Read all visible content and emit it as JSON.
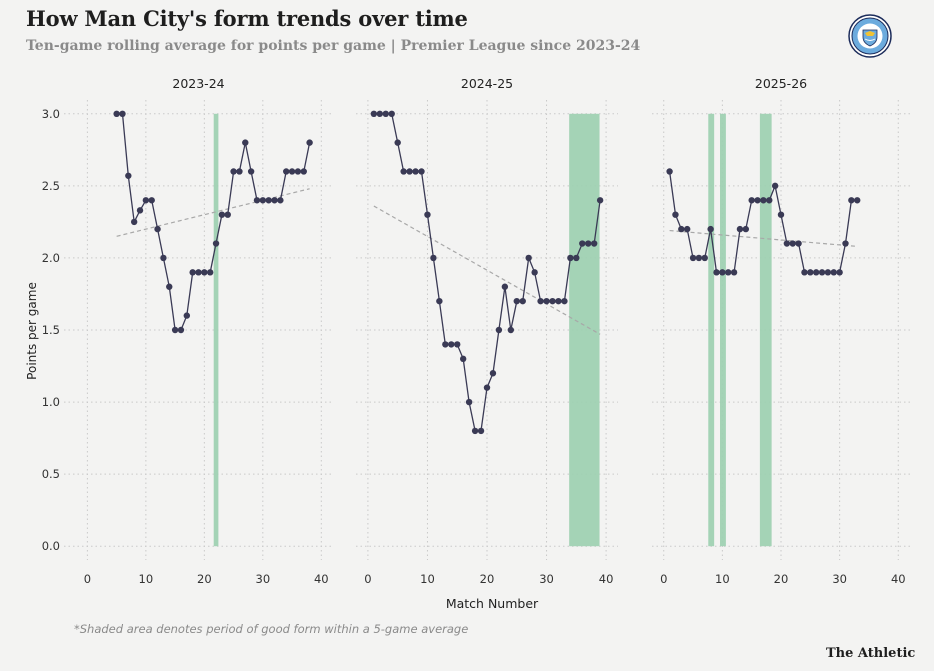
{
  "header": {
    "title": "How Man City's form trends over time",
    "subtitle": "Ten-game rolling average for points per game | Premier League since 2023-24"
  },
  "badge": {
    "icon": "manchester-city-crest-icon",
    "lettering": "MANCHESTER CITY"
  },
  "footnote": "*Shaded area denotes period of good form within a 5-game average",
  "brand": "The Athletic",
  "colors": {
    "line": "#3a3a55",
    "highlight": "#9fd1b2",
    "trend": "#a8a8a8",
    "grid": "#c9c9c9",
    "background": "#f3f3f2"
  },
  "chart_data": [
    {
      "type": "line",
      "title": "2023-24",
      "xlabel": "Match Number",
      "ylabel": "Points per game",
      "xlim": [
        -4,
        42
      ],
      "ylim": [
        0,
        3
      ],
      "xticks": [
        "0",
        "10",
        "20",
        "30",
        "40"
      ],
      "yticks": [
        "0.0",
        "0.5",
        "1.0",
        "1.5",
        "2.0",
        "2.5",
        "3.0"
      ],
      "grid": true,
      "series": [
        {
          "x": [
            5,
            6,
            7,
            8,
            9,
            10,
            11,
            12,
            13,
            14,
            15,
            16,
            17,
            18,
            19,
            20,
            21,
            22,
            23,
            24,
            25,
            26,
            27,
            28,
            29,
            30,
            31,
            32,
            33,
            34,
            35,
            36,
            37,
            38
          ],
          "y": [
            3.0,
            3.0,
            2.57,
            2.25,
            2.33,
            2.4,
            2.4,
            2.2,
            2.0,
            1.8,
            1.5,
            1.5,
            1.6,
            1.9,
            1.9,
            1.9,
            1.9,
            2.1,
            2.3,
            2.3,
            2.6,
            2.6,
            2.8,
            2.6,
            2.4,
            2.4,
            2.4,
            2.4,
            2.4,
            2.6,
            2.6,
            2.6,
            2.6,
            2.8
          ]
        }
      ],
      "trend": {
        "x": [
          5,
          38
        ],
        "y": [
          2.15,
          2.48
        ]
      },
      "highlight_ranges": [
        [
          21.6,
          22.4
        ]
      ]
    },
    {
      "type": "line",
      "title": "2024-25",
      "xlim": [
        -2,
        42
      ],
      "ylim": [
        0,
        3
      ],
      "xticks": [
        "0",
        "10",
        "20",
        "30",
        "40"
      ],
      "grid": true,
      "series": [
        {
          "x": [
            1,
            2,
            3,
            4,
            5,
            6,
            7,
            8,
            9,
            10,
            11,
            12,
            13,
            14,
            15,
            16,
            17,
            18,
            19,
            20,
            21,
            22,
            23,
            24,
            25,
            26,
            27,
            28,
            29,
            30,
            31,
            32,
            33,
            34,
            35,
            36,
            37,
            38,
            39
          ],
          "y": [
            3.0,
            3.0,
            3.0,
            3.0,
            2.8,
            2.6,
            2.6,
            2.6,
            2.6,
            2.3,
            2.0,
            1.7,
            1.4,
            1.4,
            1.4,
            1.3,
            1.0,
            0.8,
            0.8,
            1.1,
            1.2,
            1.5,
            1.8,
            1.5,
            1.7,
            1.7,
            2.0,
            1.9,
            1.7,
            1.7,
            1.7,
            1.7,
            1.7,
            2.0,
            2.0,
            2.1,
            2.1,
            2.1,
            2.4
          ]
        }
      ],
      "trend": {
        "x": [
          1,
          39
        ],
        "y": [
          2.36,
          1.47
        ]
      },
      "highlight_ranges": [
        [
          33.8,
          38.9
        ]
      ]
    },
    {
      "type": "line",
      "title": "2025-26",
      "xlim": [
        -2,
        42
      ],
      "ylim": [
        0,
        3
      ],
      "xticks": [
        "0",
        "10",
        "20",
        "30",
        "40"
      ],
      "grid": true,
      "series": [
        {
          "x": [
            1,
            2,
            3,
            4,
            5,
            6,
            7,
            8,
            9,
            10,
            11,
            12,
            13,
            14,
            15,
            16,
            17,
            18,
            19,
            20,
            21,
            22,
            23,
            24,
            25,
            26,
            27,
            28,
            29,
            30,
            31,
            32,
            33
          ],
          "y": [
            2.6,
            2.3,
            2.2,
            2.2,
            2.0,
            2.0,
            2.0,
            2.2,
            1.9,
            1.9,
            1.9,
            1.9,
            2.2,
            2.2,
            2.4,
            2.4,
            2.4,
            2.4,
            2.5,
            2.3,
            2.1,
            2.1,
            2.1,
            1.9,
            1.9,
            1.9,
            1.9,
            1.9,
            1.9,
            1.9,
            2.1,
            2.4,
            2.4
          ]
        }
      ],
      "trend": {
        "x": [
          1,
          33
        ],
        "y": [
          2.19,
          2.08
        ]
      },
      "highlight_ranges": [
        [
          7.6,
          8.6
        ],
        [
          9.6,
          10.6
        ],
        [
          16.4,
          18.4
        ]
      ]
    }
  ]
}
